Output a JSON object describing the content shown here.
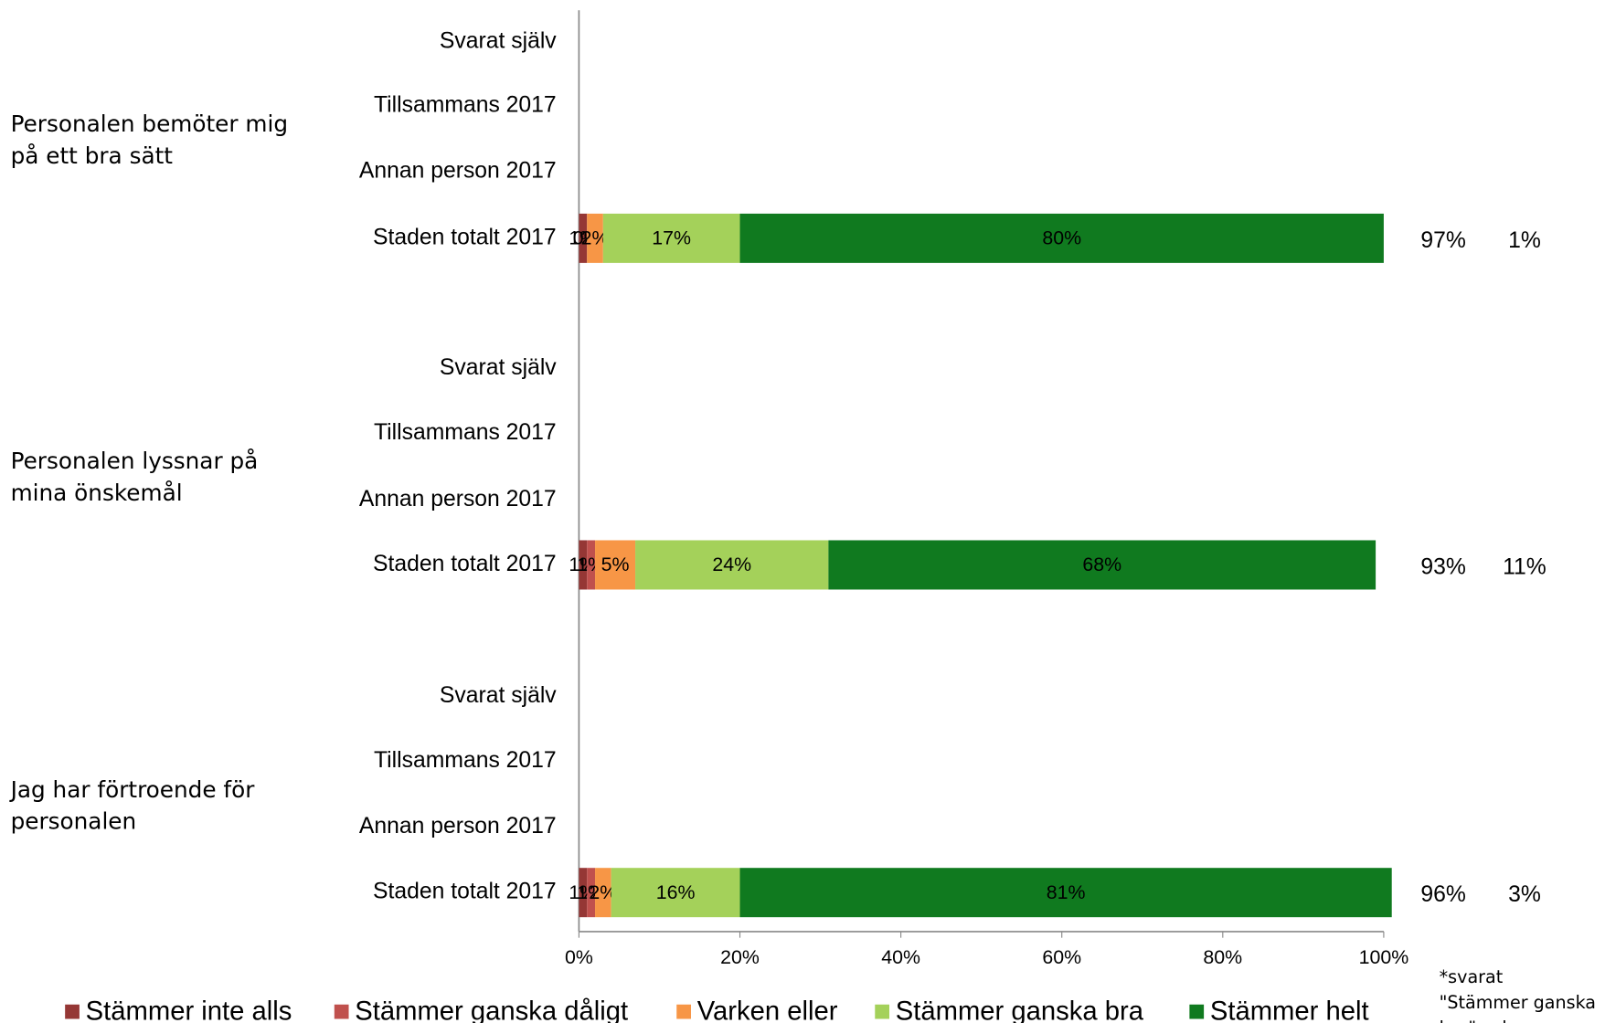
{
  "chart_data": {
    "type": "stacked_barh",
    "groups": [
      {
        "lines": [
          "Personalen bemöter mig",
          "på ett bra sätt"
        ]
      },
      {
        "lines": [
          "Personalen lyssnar på",
          "mina önskemål"
        ]
      },
      {
        "lines": [
          "Jag har förtroende för",
          "personalen"
        ]
      }
    ],
    "categories": [
      "Svarat själv",
      "Tillsammans 2017",
      "Annan person 2017",
      "Staden totalt 2017",
      "Svarat själv",
      "Tillsammans 2017",
      "Annan person 2017",
      "Staden totalt 2017",
      "Svarat själv",
      "Tillsammans 2017",
      "Annan person 2017",
      "Staden totalt 2017"
    ],
    "series": [
      {
        "name": "Stämmer inte alls",
        "color": "#953735",
        "values": [
          null,
          null,
          null,
          1,
          null,
          null,
          null,
          1,
          null,
          null,
          null,
          1
        ],
        "value_labels": [
          null,
          null,
          null,
          "1%",
          null,
          null,
          null,
          "1%",
          null,
          null,
          null,
          "1%"
        ]
      },
      {
        "name": "Stämmer ganska dåligt",
        "color": "#c0504d",
        "values": [
          null,
          null,
          null,
          0,
          null,
          null,
          null,
          1,
          null,
          null,
          null,
          1
        ],
        "value_labels": [
          null,
          null,
          null,
          "0%",
          null,
          null,
          null,
          "1%",
          null,
          null,
          null,
          "1%"
        ]
      },
      {
        "name": "Varken eller",
        "color": "#f79646",
        "values": [
          null,
          null,
          null,
          2,
          null,
          null,
          null,
          5,
          null,
          null,
          null,
          2
        ],
        "value_labels": [
          null,
          null,
          null,
          "2%",
          null,
          null,
          null,
          "5%",
          null,
          null,
          null,
          "2%"
        ]
      },
      {
        "name": "Stämmer ganska bra",
        "color": "#a4d15a",
        "values": [
          null,
          null,
          null,
          17,
          null,
          null,
          null,
          24,
          null,
          null,
          null,
          16
        ],
        "value_labels": [
          null,
          null,
          null,
          "17%",
          null,
          null,
          null,
          "24%",
          null,
          null,
          null,
          "16%"
        ]
      },
      {
        "name": "Stämmer helt",
        "color": "#107a1f",
        "values": [
          null,
          null,
          null,
          80,
          null,
          null,
          null,
          68,
          null,
          null,
          null,
          81
        ],
        "value_labels": [
          null,
          null,
          null,
          "80%",
          null,
          null,
          null,
          "68%",
          null,
          null,
          null,
          "81%"
        ]
      }
    ],
    "side_columns": [
      {
        "values": [
          97,
          93,
          96
        ],
        "value_labels": [
          "97%",
          "93%",
          "96%"
        ]
      },
      {
        "values": [
          1,
          11,
          3
        ],
        "value_labels": [
          "1%",
          "11%",
          "3%"
        ]
      }
    ],
    "footnote": [
      "*svarat",
      "\"Stämmer ganska",
      "bra\" och"
    ],
    "xlim": [
      0,
      100
    ],
    "xticks": [
      {
        "value": 0,
        "label": "0%"
      },
      {
        "value": 20,
        "label": "20%"
      },
      {
        "value": 40,
        "label": "40%"
      },
      {
        "value": 60,
        "label": "60%"
      },
      {
        "value": 80,
        "label": "80%"
      },
      {
        "value": 100,
        "label": "100%"
      }
    ],
    "legend": "bottom"
  }
}
